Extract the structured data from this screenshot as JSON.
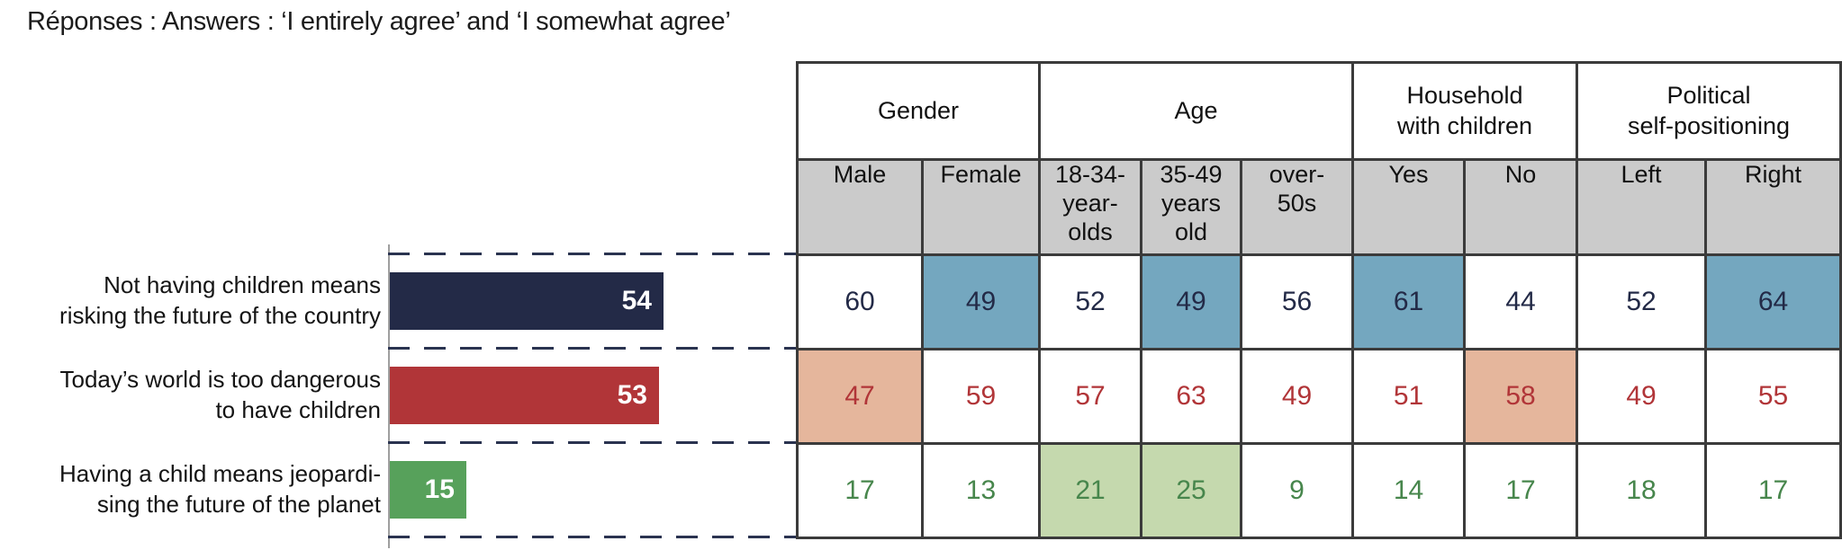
{
  "title": "Réponses : Answers : ‘I entirely agree’ and ‘I somewhat agree’",
  "colors": {
    "bar_navy": "#232a47",
    "bar_red": "#b13538",
    "bar_green": "#57a15b",
    "text_navy": "#232a47",
    "text_red": "#b13538",
    "text_green": "#47864c",
    "highlight_blue": "#74a7bf",
    "highlight_salmon": "#e5b69c",
    "highlight_green": "#c5d9ae",
    "header_gray": "#cbcbcb",
    "table_border": "#3b3b3b",
    "dash_navy": "#2a3350",
    "axis_gray": "#9f9f9f"
  },
  "chart_data": {
    "type": "bar",
    "orientation": "horizontal",
    "title": "Réponses : Answers : ‘I entirely agree’ and ‘I somewhat agree’",
    "categories": [
      "Not having children means\nrisking the future of the country",
      "Today’s world is too dangerous\nto have children",
      "Having a child means jeopardi-\nsing the future of the planet"
    ],
    "values": [
      54,
      53,
      15
    ],
    "bar_colors": [
      "#232a47",
      "#b13538",
      "#57a15b"
    ],
    "value_labels": [
      "54",
      "53",
      "15"
    ],
    "xlim": [
      0,
      80
    ],
    "grid": "dashed row separators",
    "legend": "none"
  },
  "table": {
    "groups": [
      {
        "label": "Gender",
        "span": 2
      },
      {
        "label": "Age",
        "span": 3
      },
      {
        "label": "Household\nwith children",
        "span": 2
      },
      {
        "label": "Political\nself-positioning",
        "span": 2
      }
    ],
    "columns": [
      "Male",
      "Female",
      "18-34-\nyear-\nolds",
      "35-49\nyears\nold",
      "over-\n50s",
      "Yes",
      "No",
      "Left",
      "Right"
    ],
    "rows": [
      {
        "label": "Not having children means\nrisking the future of the country",
        "bar_value": 54,
        "values": [
          60,
          49,
          52,
          49,
          56,
          61,
          44,
          52,
          64
        ],
        "text_color": "#232a47",
        "highlight_color": "#74a7bf",
        "highlighted_cols": [
          1,
          3,
          5,
          8
        ]
      },
      {
        "label": "Today’s world is too dangerous\nto have children",
        "bar_value": 53,
        "values": [
          47,
          59,
          57,
          63,
          49,
          51,
          58,
          49,
          55
        ],
        "text_color": "#b13538",
        "highlight_color": "#e5b69c",
        "highlighted_cols": [
          0,
          6
        ]
      },
      {
        "label": "Having a child means jeopardi-\nsing the future of the planet",
        "bar_value": 15,
        "values": [
          17,
          13,
          21,
          25,
          9,
          14,
          17,
          18,
          17
        ],
        "text_color": "#47864c",
        "highlight_color": "#c5d9ae",
        "highlighted_cols": [
          2,
          3
        ]
      }
    ]
  }
}
